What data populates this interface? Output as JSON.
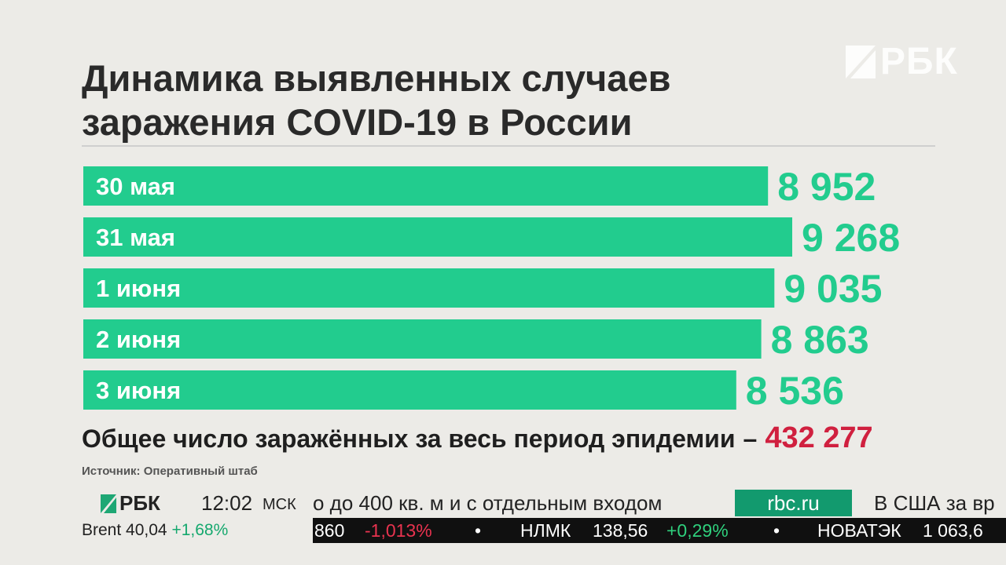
{
  "brand": {
    "logo_text": "РБК",
    "accent": "#22cc8e",
    "highlight": "#d0203f"
  },
  "title_line1": "Динамика выявленных случаев",
  "title_line2": "заражения COVID-19 в России",
  "chart_data": {
    "type": "bar",
    "orientation": "horizontal",
    "title": "Динамика выявленных случаев заражения COVID-19 в России",
    "categories": [
      "30 мая",
      "31 мая",
      "1 июня",
      "2 июня",
      "3 июня"
    ],
    "values": [
      8952,
      9268,
      9035,
      8863,
      8536
    ],
    "value_labels": [
      "8 952",
      "9 268",
      "9 035",
      "8 863",
      "8 536"
    ],
    "grid": false
  },
  "total": {
    "label": "Общее число заражённых за весь период эпидемии",
    "separator": "–",
    "value": "432 277"
  },
  "source": "Источник: Оперативный штаб",
  "ticker": {
    "logo_text": "РБК",
    "time": "12:02",
    "timezone": "МСК",
    "news": "о до 400 кв. м и с отдельным входом",
    "site": "rbc.ru",
    "news2": "В США за вр",
    "brent_label": "Brent 40,04",
    "brent_change": "+1,68%",
    "stocks": [
      {
        "value": "860",
        "change": "-1,013%",
        "dir": "down"
      },
      {
        "name": "НЛМК",
        "value": "138,56",
        "change": "+0,29%",
        "dir": "up"
      },
      {
        "name": "НОВАТЭК",
        "value": "1 063,6",
        "change": "",
        "dir": ""
      }
    ]
  }
}
